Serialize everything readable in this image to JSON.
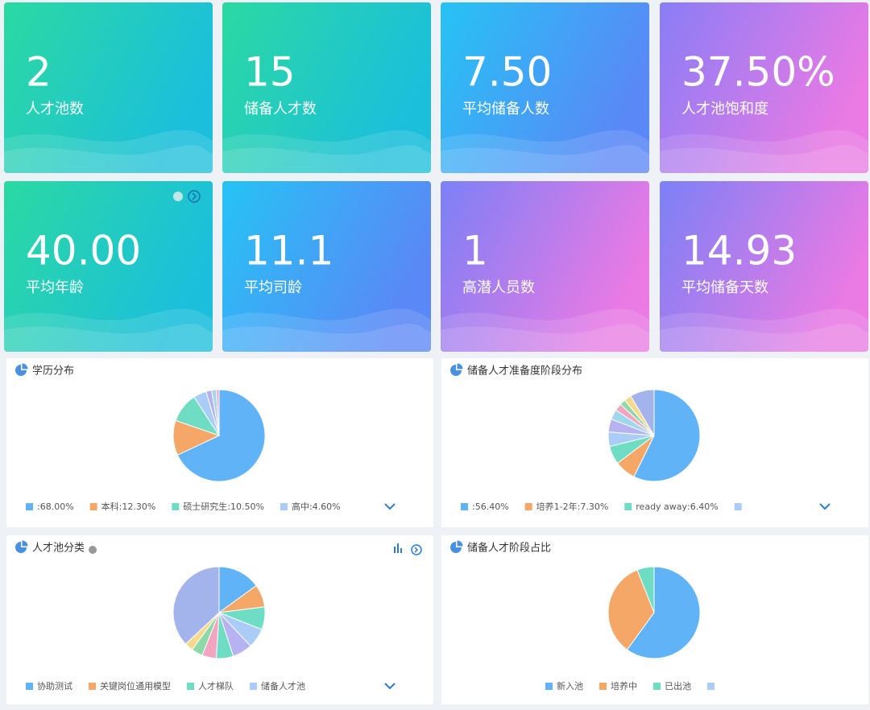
{
  "cards": [
    {
      "value": "2",
      "label": "人才池数"
    },
    {
      "value": "15",
      "label": "储备人才数"
    },
    {
      "value": "7.50",
      "label": "平均储备人数"
    },
    {
      "value": "37.50%",
      "label": "人才池饱和度"
    },
    {
      "value": "40.00",
      "label": "平均年龄"
    },
    {
      "value": "11.1",
      "label": "平均司龄"
    },
    {
      "value": "1",
      "label": "高潜人员数"
    },
    {
      "value": "14.93",
      "label": "平均储备天数"
    }
  ],
  "chart_data": [
    {
      "type": "pie",
      "title": "学历分布",
      "categories": [
        null,
        "本科",
        "硕士研究生",
        "高中",
        null,
        null,
        null
      ],
      "values": [
        68,
        12.3,
        10.5,
        4.6,
        2.0,
        1.6,
        1.0
      ],
      "value_labels": [
        ":68.00%",
        ":12.30%",
        ":10.50%",
        ":4.60%",
        null,
        null,
        null
      ],
      "colors": [
        "#5fb3f6",
        "#f4a767",
        "#6fdcc4",
        "#a9cdf7",
        "#b7b2f2",
        "#9fd7ee",
        "#f3a4c0"
      ]
    },
    {
      "type": "pie",
      "title": "储备人才准备度阶段分布",
      "categories": [
        null,
        "培养1-2年",
        "ready away",
        null,
        null,
        null,
        null,
        null,
        null,
        null
      ],
      "values": [
        56.4,
        7.3,
        6.4,
        5,
        4.5,
        3.5,
        2.5,
        2,
        2.5,
        8.4
      ],
      "value_labels": [
        ":56.40%",
        ":7.30%",
        ":6.40%",
        null,
        null,
        null,
        null,
        null,
        null,
        null
      ],
      "colors": [
        "#5fb3f6",
        "#f4a767",
        "#6fdcc4",
        "#a9cdf7",
        "#b7b2f2",
        "#9fd7ee",
        "#f3a4c0",
        "#8fd9a8",
        "#f6d98a",
        "#a3b4ec"
      ]
    },
    {
      "type": "pie",
      "title": "人才池分类",
      "categories": [
        "协助测试",
        "关键岗位通用模型",
        "人才梯队",
        "储备人才池",
        null,
        null,
        null,
        null,
        null,
        null
      ],
      "values": [
        15,
        8,
        8,
        7,
        7,
        6,
        5,
        4,
        3,
        37
      ],
      "colors": [
        "#5fb3f6",
        "#f4a767",
        "#6fdcc4",
        "#a9cdf7",
        "#b7b2f2",
        "#6fdcc4",
        "#f3a4c0",
        "#8fd9a8",
        "#f6d98a",
        "#a3b4ec"
      ]
    },
    {
      "type": "pie",
      "title": "储备人才阶段占比",
      "categories": [
        "新入池",
        "培养中",
        "已出池",
        null
      ],
      "values": [
        60,
        34,
        6,
        0
      ],
      "colors": [
        "#5fb3f6",
        "#f4a767",
        "#6fdcc4",
        "#a9cdf7"
      ]
    }
  ]
}
